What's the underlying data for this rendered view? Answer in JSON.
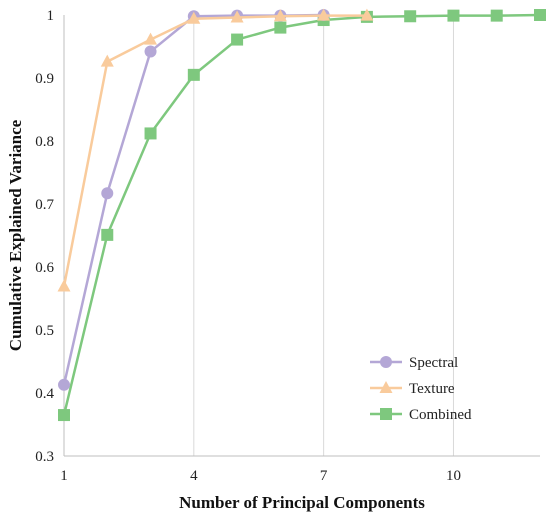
{
  "chart_data": {
    "type": "line",
    "title": "",
    "xlabel": "Number of Principal Components",
    "ylabel": "Cumulative Explained Variance",
    "xlim": [
      1,
      12
    ],
    "ylim": [
      0.3,
      1.0
    ],
    "x_ticks": [
      1,
      4,
      7,
      10
    ],
    "y_ticks": [
      0.3,
      0.4,
      0.5,
      0.6,
      0.7,
      0.8,
      0.9,
      1.0
    ],
    "y_tick_labels": [
      "0.3",
      "0.4",
      "0.5",
      "0.6",
      "0.7",
      "0.8",
      "0.9",
      "1"
    ],
    "grid": "vertical",
    "legend_position": "bottom-right",
    "x": [
      1,
      2,
      3,
      4,
      5,
      6,
      7,
      8,
      9,
      10,
      11,
      12
    ],
    "series": [
      {
        "name": "Spectral",
        "marker": "circle",
        "color": "#b4a7d6",
        "x": [
          1,
          2,
          3,
          4,
          5,
          6,
          7
        ],
        "values": [
          0.413,
          0.717,
          0.942,
          0.998,
          0.999,
          0.999,
          1.0
        ]
      },
      {
        "name": "Texture",
        "marker": "triangle",
        "color": "#f9cb9c",
        "x": [
          1,
          2,
          3,
          4,
          5,
          6,
          7,
          8
        ],
        "values": [
          0.569,
          0.926,
          0.961,
          0.994,
          0.996,
          0.998,
          0.999,
          0.999
        ]
      },
      {
        "name": "Combined",
        "marker": "square",
        "color": "#7ec87e",
        "x": [
          1,
          2,
          3,
          4,
          5,
          6,
          7,
          8,
          9,
          10,
          11,
          12
        ],
        "values": [
          0.365,
          0.651,
          0.812,
          0.905,
          0.961,
          0.98,
          0.992,
          0.997,
          0.998,
          0.999,
          0.999,
          1.0
        ]
      }
    ]
  }
}
